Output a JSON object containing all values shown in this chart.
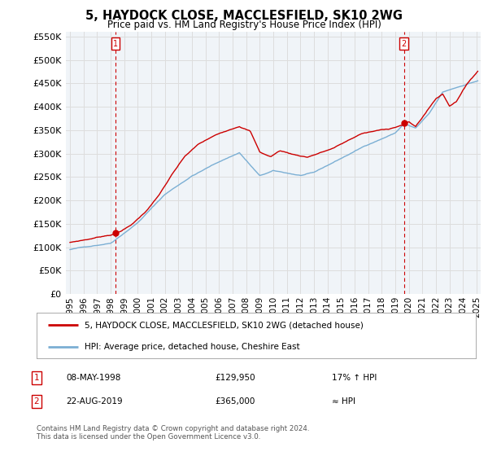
{
  "title": "5, HAYDOCK CLOSE, MACCLESFIELD, SK10 2WG",
  "subtitle": "Price paid vs. HM Land Registry's House Price Index (HPI)",
  "legend_line1": "5, HAYDOCK CLOSE, MACCLESFIELD, SK10 2WG (detached house)",
  "legend_line2": "HPI: Average price, detached house, Cheshire East",
  "annotation1_label": "1",
  "annotation1_date": "08-MAY-1998",
  "annotation1_price": "£129,950",
  "annotation1_hpi": "17% ↑ HPI",
  "annotation1_year": 1998.36,
  "annotation1_value": 129950,
  "annotation2_label": "2",
  "annotation2_date": "22-AUG-2019",
  "annotation2_price": "£365,000",
  "annotation2_hpi": "≈ HPI",
  "annotation2_year": 2019.64,
  "annotation2_value": 365000,
  "footer": "Contains HM Land Registry data © Crown copyright and database right 2024.\nThis data is licensed under the Open Government Licence v3.0.",
  "red_color": "#cc0000",
  "blue_color": "#7bafd4",
  "grid_color": "#dddddd",
  "bg_color": "#ffffff",
  "plot_bg_color": "#f0f4f8",
  "ylim": [
    0,
    560000
  ],
  "yticks": [
    0,
    50000,
    100000,
    150000,
    200000,
    250000,
    300000,
    350000,
    400000,
    450000,
    500000,
    550000
  ],
  "xlim_start": 1994.7,
  "xlim_end": 2025.3,
  "xtick_years": [
    1995,
    1996,
    1997,
    1998,
    1999,
    2000,
    2001,
    2002,
    2003,
    2004,
    2005,
    2006,
    2007,
    2008,
    2009,
    2010,
    2011,
    2012,
    2013,
    2014,
    2015,
    2016,
    2017,
    2018,
    2019,
    2020,
    2021,
    2022,
    2023,
    2024,
    2025
  ]
}
